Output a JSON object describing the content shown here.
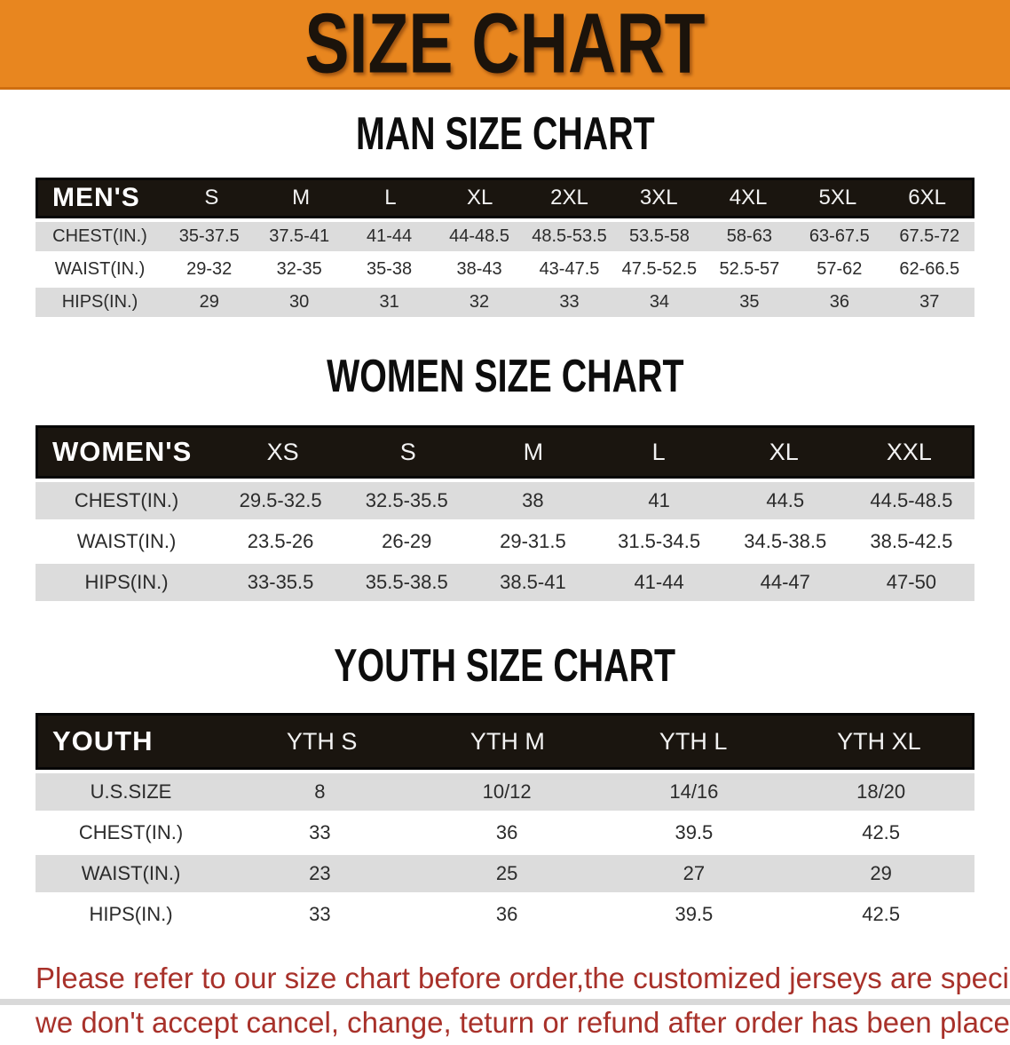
{
  "banner": {
    "title": "SIZE CHART"
  },
  "sections": [
    {
      "heading": "MAN SIZE CHART",
      "table": {
        "header_label": "MEN'S",
        "columns": [
          "S",
          "M",
          "L",
          "XL",
          "2XL",
          "3XL",
          "4XL",
          "5XL",
          "6XL"
        ],
        "rows": [
          {
            "label": "CHEST(IN.)",
            "values": [
              "35-37.5",
              "37.5-41",
              "41-44",
              "44-48.5",
              "48.5-53.5",
              "53.5-58",
              "58-63",
              "63-67.5",
              "67.5-72"
            ]
          },
          {
            "label": "WAIST(IN.)",
            "values": [
              "29-32",
              "32-35",
              "35-38",
              "38-43",
              "43-47.5",
              "47.5-52.5",
              "52.5-57",
              "57-62",
              "62-66.5"
            ]
          },
          {
            "label": "HIPS(IN.)",
            "values": [
              "29",
              "30",
              "31",
              "32",
              "33",
              "34",
              "35",
              "36",
              "37"
            ]
          }
        ]
      }
    },
    {
      "heading": "WOMEN SIZE CHART",
      "table": {
        "header_label": "WOMEN'S",
        "columns": [
          "XS",
          "S",
          "M",
          "L",
          "XL",
          "XXL"
        ],
        "rows": [
          {
            "label": "CHEST(IN.)",
            "values": [
              "29.5-32.5",
              "32.5-35.5",
              "38",
              "41",
              "44.5",
              "44.5-48.5"
            ]
          },
          {
            "label": "WAIST(IN.)",
            "values": [
              "23.5-26",
              "26-29",
              "29-31.5",
              "31.5-34.5",
              "34.5-38.5",
              "38.5-42.5"
            ]
          },
          {
            "label": "HIPS(IN.)",
            "values": [
              "33-35.5",
              "35.5-38.5",
              "38.5-41",
              "41-44",
              "44-47",
              "47-50"
            ]
          }
        ]
      }
    },
    {
      "heading": "YOUTH SIZE CHART",
      "table": {
        "header_label": "YOUTH",
        "columns": [
          "YTH S",
          "YTH M",
          "YTH L",
          "YTH XL"
        ],
        "rows": [
          {
            "label": "U.S.SIZE",
            "values": [
              "8",
              "10/12",
              "14/16",
              "18/20"
            ]
          },
          {
            "label": "CHEST(IN.)",
            "values": [
              "33",
              "36",
              "39.5",
              "42.5"
            ]
          },
          {
            "label": "WAIST(IN.)",
            "values": [
              "23",
              "25",
              "27",
              "29"
            ]
          },
          {
            "label": "HIPS(IN.)",
            "values": [
              "33",
              "36",
              "39.5",
              "42.5"
            ]
          }
        ]
      }
    }
  ],
  "footer_note": {
    "line1": "Please refer to our size chart before order,the customized jerseys are special products,",
    "line2": "we don't accept cancel, change, teturn or refund after order has been placed!"
  },
  "colors": {
    "banner-bg": "#e8861f",
    "banner-edge": "#cf6e10",
    "banner-text": "#1b130b",
    "header-bg": "#1a150f",
    "header-border": "#060606",
    "row-gray": "#dcdcdc",
    "note-red": "#a8312a"
  }
}
